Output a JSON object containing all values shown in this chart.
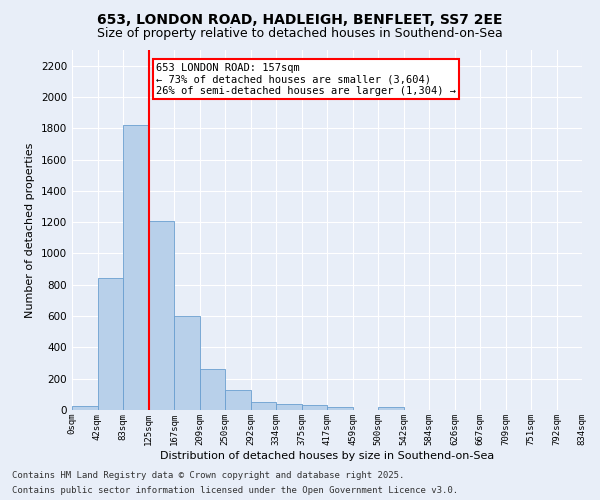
{
  "title1": "653, LONDON ROAD, HADLEIGH, BENFLEET, SS7 2EE",
  "title2": "Size of property relative to detached houses in Southend-on-Sea",
  "xlabel": "Distribution of detached houses by size in Southend-on-Sea",
  "ylabel": "Number of detached properties",
  "bar_values": [
    25,
    845,
    1820,
    1210,
    600,
    260,
    125,
    50,
    40,
    30,
    20,
    0,
    20,
    0,
    0,
    0,
    0,
    0,
    0,
    0
  ],
  "bin_labels": [
    "0sqm",
    "42sqm",
    "83sqm",
    "125sqm",
    "167sqm",
    "209sqm",
    "250sqm",
    "292sqm",
    "334sqm",
    "375sqm",
    "417sqm",
    "459sqm",
    "500sqm",
    "542sqm",
    "584sqm",
    "626sqm",
    "667sqm",
    "709sqm",
    "751sqm",
    "792sqm",
    "834sqm"
  ],
  "bar_color": "#b8d0ea",
  "bar_edge_color": "#6a9fd0",
  "vline_x": 3.0,
  "vline_color": "red",
  "annotation_text": "653 LONDON ROAD: 157sqm\n← 73% of detached houses are smaller (3,604)\n26% of semi-detached houses are larger (1,304) →",
  "annotation_box_color": "white",
  "annotation_box_edge": "red",
  "ylim": [
    0,
    2300
  ],
  "yticks": [
    0,
    200,
    400,
    600,
    800,
    1000,
    1200,
    1400,
    1600,
    1800,
    2000,
    2200
  ],
  "footer1": "Contains HM Land Registry data © Crown copyright and database right 2025.",
  "footer2": "Contains public sector information licensed under the Open Government Licence v3.0.",
  "bg_color": "#e8eef8",
  "plot_bg_color": "#e8eef8",
  "grid_color": "#ffffff",
  "title_fontsize": 10,
  "subtitle_fontsize": 9,
  "annotation_fontsize": 7.5,
  "footer_fontsize": 6.5,
  "ylabel_fontsize": 8,
  "xlabel_fontsize": 8
}
